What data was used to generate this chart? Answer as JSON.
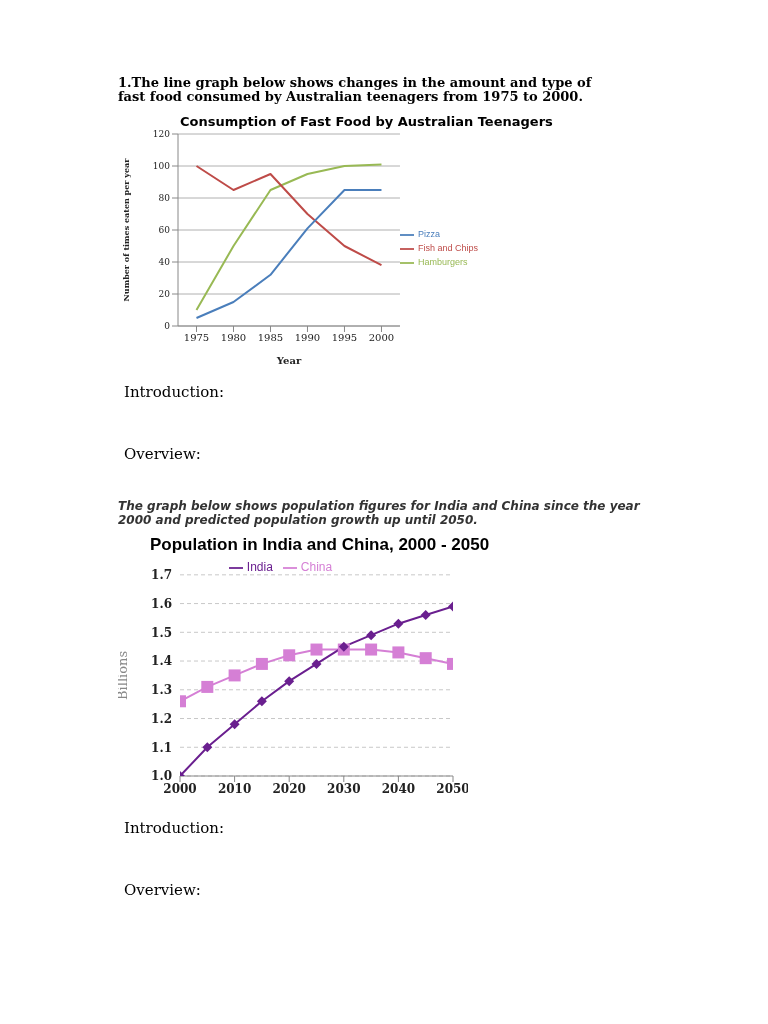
{
  "chart_data": [
    {
      "type": "line",
      "subtitle": "1.The line graph below shows changes in the amount and type of fast food consumed by Australian teenagers from 1975 to 2000.",
      "title": "Consumption of Fast Food by Australian Teenagers",
      "xlabel": "Year",
      "ylabel": "Number of times eaten per year",
      "x": [
        1975,
        1980,
        1985,
        1990,
        1995,
        2000
      ],
      "series": [
        {
          "name": "Pizza",
          "color": "#4a7ebb",
          "values": [
            5,
            15,
            32,
            61,
            85,
            85
          ]
        },
        {
          "name": "Fish and Chips",
          "color": "#be4b48",
          "values": [
            100,
            85,
            95,
            70,
            50,
            38
          ]
        },
        {
          "name": "Hamburgers",
          "color": "#98b954",
          "values": [
            10,
            50,
            85,
            95,
            100,
            101
          ]
        }
      ],
      "xlim": [
        1972.5,
        2002.5
      ],
      "xticks": [
        1975,
        1980,
        1985,
        1990,
        1995,
        2000
      ],
      "ylim": [
        0,
        120
      ],
      "yticks": [
        0,
        20,
        40,
        60,
        80,
        100,
        120
      ],
      "grid": "y",
      "legend": "right",
      "marker": "none",
      "annotations": [
        "Introduction:",
        "Overview:"
      ]
    },
    {
      "type": "line",
      "subtitle": "The graph below shows population figures for India and China since the year 2000 and predicted population growth up until 2050.",
      "title": "Population in India and China, 2000 - 2050",
      "ylabel": "Billions",
      "x": [
        2000,
        2005,
        2010,
        2015,
        2020,
        2025,
        2030,
        2035,
        2040,
        2045,
        2050
      ],
      "series": [
        {
          "name": "India",
          "color": "#6a1f8f",
          "marker": "diamond",
          "values": [
            1.0,
            1.1,
            1.18,
            1.26,
            1.33,
            1.39,
            1.45,
            1.49,
            1.53,
            1.56,
            1.59
          ]
        },
        {
          "name": "China",
          "color": "#d57fd5",
          "marker": "square",
          "values": [
            1.26,
            1.31,
            1.35,
            1.39,
            1.42,
            1.44,
            1.44,
            1.44,
            1.43,
            1.41,
            1.39
          ]
        }
      ],
      "xlim": [
        2000,
        2050
      ],
      "xticks": [
        2000,
        2010,
        2020,
        2030,
        2040,
        2050
      ],
      "ylim": [
        1.0,
        1.7
      ],
      "yticks": [
        {
          "value": 1.0,
          "label": "1.0"
        },
        1.1,
        1.2,
        1.3,
        1.4,
        1.5,
        1.6,
        1.7
      ],
      "grid": "y",
      "legend": "top",
      "annotations": [
        "Introduction:",
        "Overview:"
      ]
    }
  ]
}
